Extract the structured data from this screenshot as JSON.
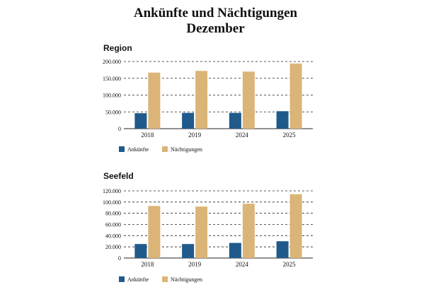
{
  "header": {
    "title": "Ankünfte und Nächtigungen",
    "subtitle": "Dezember"
  },
  "colors": {
    "arrivals": "#1f5a8b",
    "nights": "#dbb577",
    "grid": "#222222"
  },
  "chart_data": [
    {
      "type": "bar",
      "title": "Region",
      "categories": [
        "2018",
        "2019",
        "2024",
        "2025"
      ],
      "series": [
        {
          "name": "Ankünfte",
          "values": [
            46000,
            47000,
            47000,
            52000
          ]
        },
        {
          "name": "Nächtigungen",
          "values": [
            167000,
            172000,
            170000,
            194000
          ]
        }
      ],
      "ylim": [
        0,
        200000
      ],
      "yticks": [
        "0",
        "50.000",
        "100.000",
        "150.000",
        "200.000"
      ],
      "grid": true,
      "legend": "bottom"
    },
    {
      "type": "bar",
      "title": "Seefeld",
      "categories": [
        "2018",
        "2019",
        "2024",
        "2025"
      ],
      "series": [
        {
          "name": "Ankünfte",
          "values": [
            25000,
            25000,
            27000,
            30000
          ]
        },
        {
          "name": "Nächtigungen",
          "values": [
            93000,
            92000,
            97000,
            114000
          ]
        }
      ],
      "ylim": [
        0,
        120000
      ],
      "yticks": [
        "0",
        "20.000",
        "40.000",
        "60.000",
        "80.000",
        "100.000",
        "120.000"
      ],
      "grid": true,
      "legend": "bottom"
    }
  ]
}
